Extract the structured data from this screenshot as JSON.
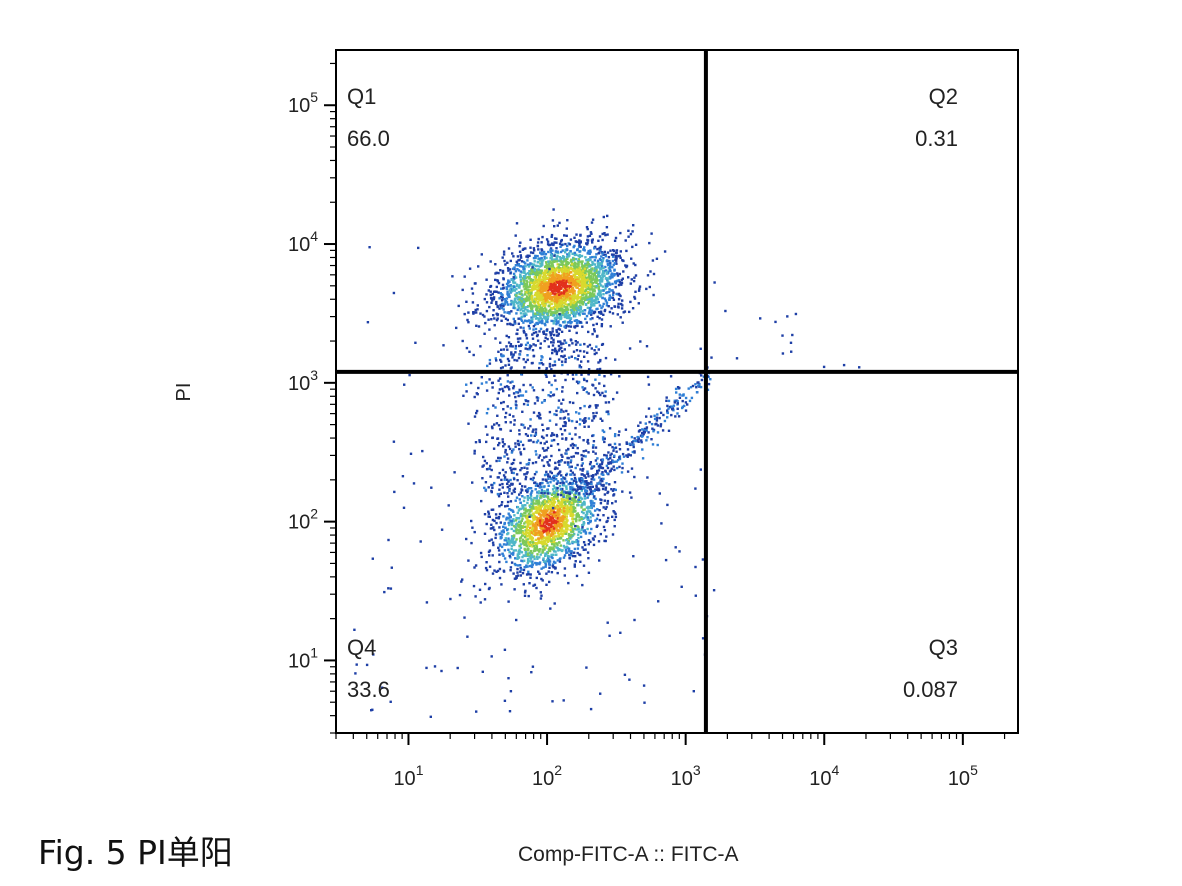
{
  "figure": {
    "caption": "Fig. 5  PI单阳"
  },
  "chart_data": {
    "type": "scatter",
    "subtype": "flow-cytometry-density-dot-plot",
    "xlabel": "Comp-FITC-A :: FITC-A",
    "ylabel": "PI",
    "x_scale": "log",
    "y_scale": "log",
    "xlim": [
      3,
      250000
    ],
    "ylim": [
      3,
      250000
    ],
    "x_ticks": [
      {
        "value": 10,
        "base": "10",
        "exp": "1"
      },
      {
        "value": 100,
        "base": "10",
        "exp": "2"
      },
      {
        "value": 1000,
        "base": "10",
        "exp": "3"
      },
      {
        "value": 10000,
        "base": "10",
        "exp": "4"
      },
      {
        "value": 100000,
        "base": "10",
        "exp": "5"
      }
    ],
    "y_ticks": [
      {
        "value": 10,
        "base": "10",
        "exp": "1"
      },
      {
        "value": 100,
        "base": "10",
        "exp": "2"
      },
      {
        "value": 1000,
        "base": "10",
        "exp": "3"
      },
      {
        "value": 10000,
        "base": "10",
        "exp": "4"
      },
      {
        "value": 100000,
        "base": "10",
        "exp": "5"
      }
    ],
    "gates": {
      "x": 1400,
      "y": 1200
    },
    "quadrants": [
      {
        "name": "Q1",
        "value": "66.0",
        "corner": "top-left"
      },
      {
        "name": "Q2",
        "value": "0.31",
        "corner": "top-right"
      },
      {
        "name": "Q3",
        "value": "0.087",
        "corner": "bottom-right"
      },
      {
        "name": "Q4",
        "value": "33.6",
        "corner": "bottom-left"
      }
    ],
    "populations": [
      {
        "center_x": 120,
        "center_y": 5000,
        "spread_x_decades": 0.22,
        "spread_y_decades": 0.16
      },
      {
        "center_x": 100,
        "center_y": 100,
        "spread_x_decades": 0.18,
        "spread_y_decades": 0.18
      }
    ],
    "color_scale": [
      "#1e3fa6",
      "#2f7fd6",
      "#4fb7c8",
      "#7cc95a",
      "#d8d92e",
      "#f0a020",
      "#e2301c"
    ],
    "grid": false,
    "legend": "none"
  }
}
